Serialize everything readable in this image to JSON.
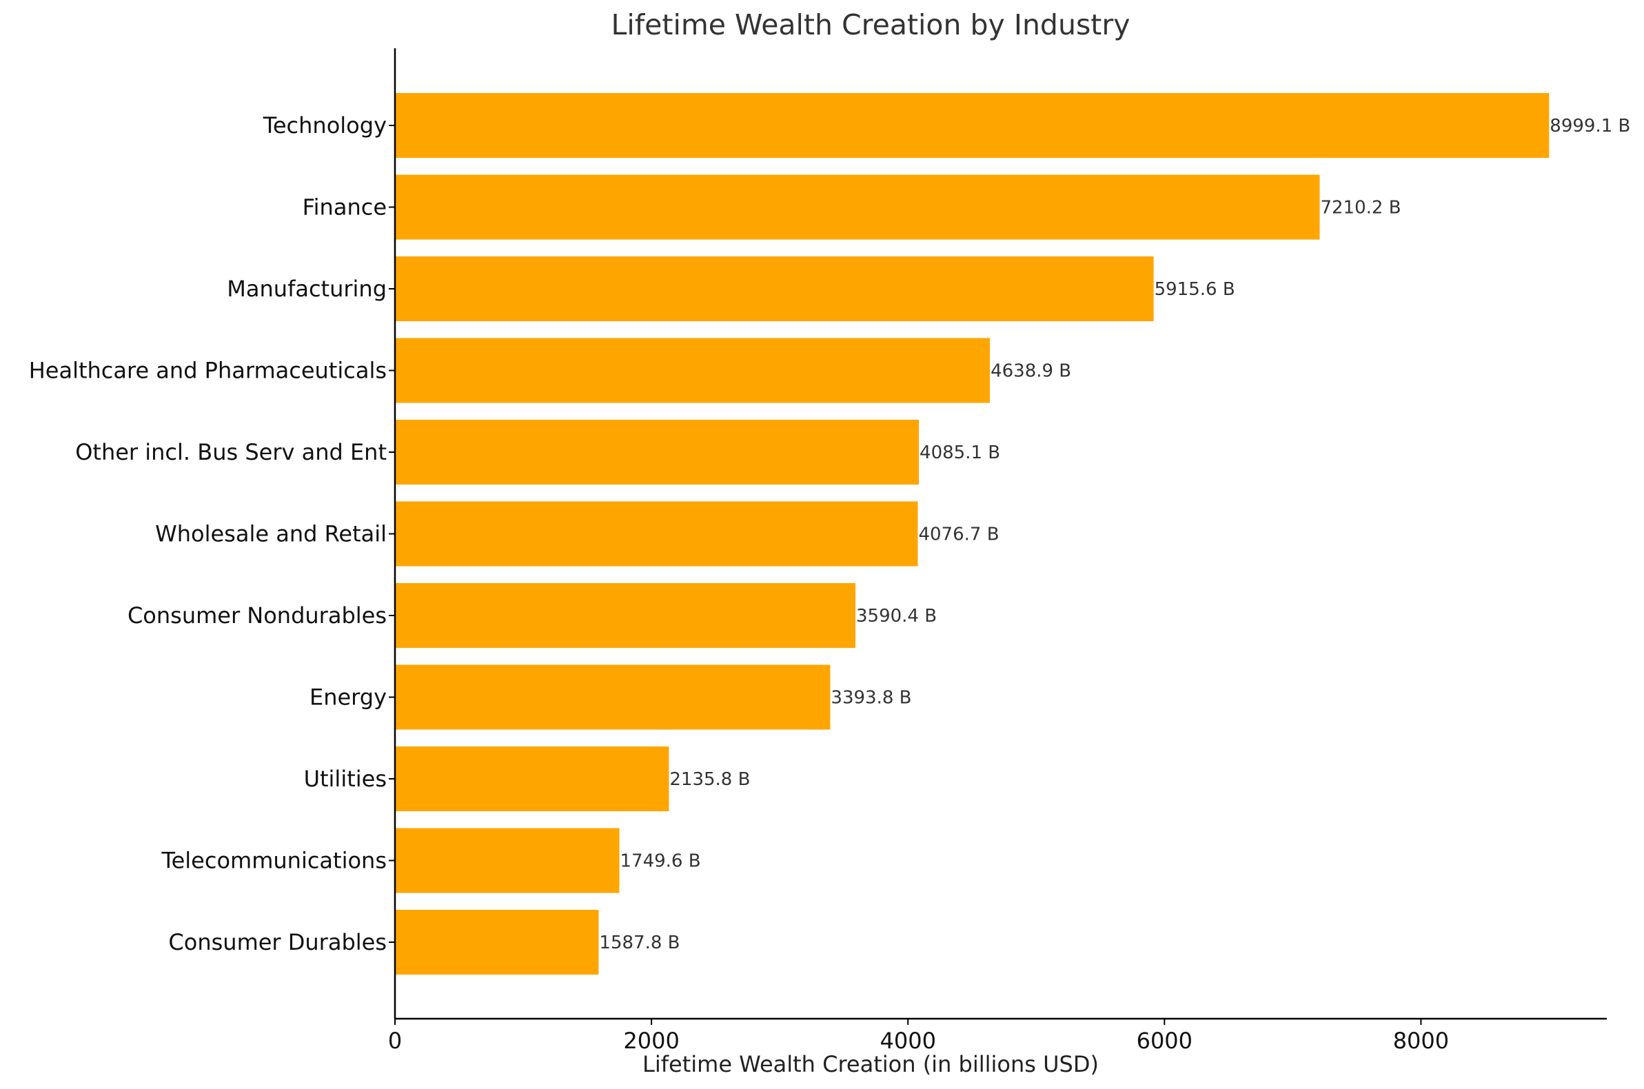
{
  "chart_data": {
    "type": "bar",
    "orientation": "horizontal",
    "title": "Lifetime Wealth Creation by Industry",
    "xlabel": "Lifetime Wealth Creation (in billions USD)",
    "ylabel": "",
    "xlim": [
      0,
      9449
    ],
    "xticks": [
      0,
      2000,
      4000,
      6000,
      8000
    ],
    "grid": false,
    "bar_color": "#FFA500",
    "label_suffix": " B",
    "categories": [
      "Technology",
      "Finance",
      "Manufacturing",
      "Healthcare and Pharmaceuticals",
      "Other incl. Bus Serv and Ent",
      "Wholesale and Retail",
      "Consumer Nondurables",
      "Energy",
      "Utilities",
      "Telecommunications",
      "Consumer Durables"
    ],
    "values": [
      8999.1,
      7210.2,
      5915.6,
      4638.9,
      4085.1,
      4076.7,
      3590.4,
      3393.8,
      2135.8,
      1749.6,
      1587.8
    ]
  }
}
